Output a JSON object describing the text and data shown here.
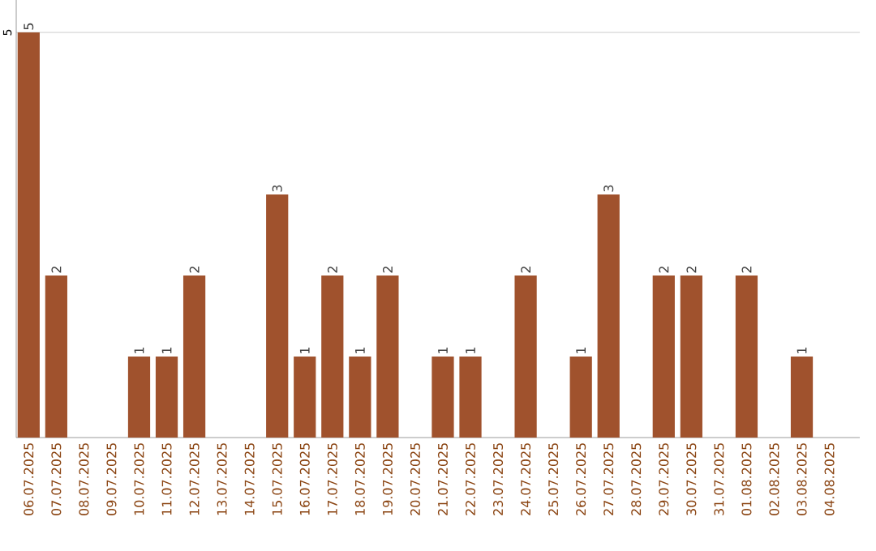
{
  "chart_data": {
    "type": "bar",
    "categories": [
      "06.07.2025",
      "07.07.2025",
      "08.07.2025",
      "09.07.2025",
      "10.07.2025",
      "11.07.2025",
      "12.07.2025",
      "13.07.2025",
      "14.07.2025",
      "15.07.2025",
      "16.07.2025",
      "17.07.2025",
      "18.07.2025",
      "19.07.2025",
      "20.07.2025",
      "21.07.2025",
      "22.07.2025",
      "23.07.2025",
      "24.07.2025",
      "25.07.2025",
      "26.07.2025",
      "27.07.2025",
      "28.07.2025",
      "29.07.2025",
      "30.07.2025",
      "31.07.2025",
      "01.08.2025",
      "02.08.2025",
      "03.08.2025",
      "04.08.2025"
    ],
    "values": [
      5,
      2,
      0,
      0,
      1,
      1,
      2,
      0,
      0,
      3,
      1,
      2,
      1,
      2,
      0,
      1,
      1,
      0,
      2,
      0,
      1,
      3,
      0,
      2,
      2,
      0,
      2,
      0,
      1,
      0
    ],
    "value_labels": [
      "5",
      "2",
      null,
      null,
      "1",
      "1",
      "2",
      null,
      null,
      "3",
      "1",
      "2",
      "1",
      "2",
      null,
      "1",
      "1",
      null,
      "2",
      null,
      "1",
      "3",
      null,
      "2",
      "2",
      null,
      "2",
      null,
      "1",
      null
    ],
    "color": "#a0522d",
    "ylim": [
      0,
      5.4
    ],
    "yticks": [
      5
    ],
    "grid": "y"
  }
}
